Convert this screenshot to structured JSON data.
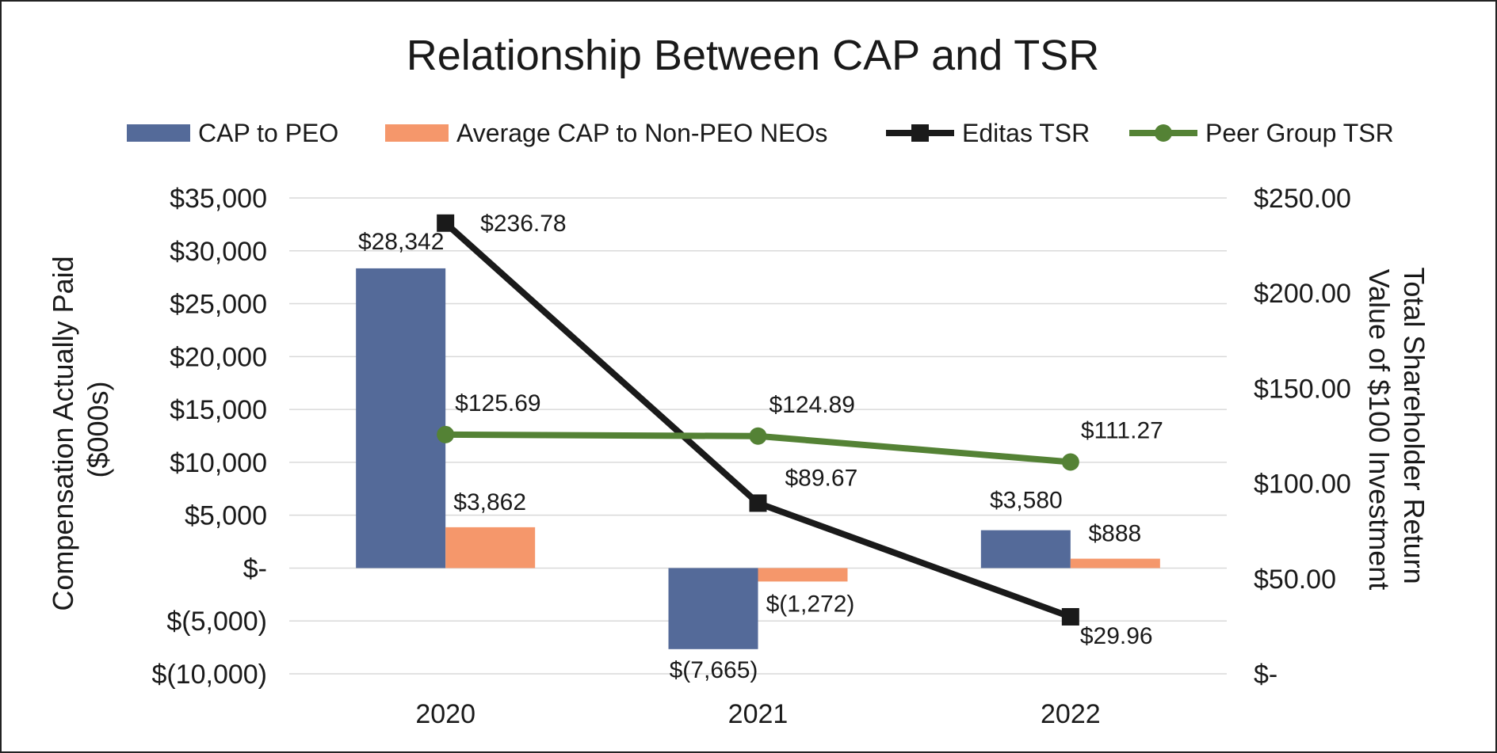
{
  "chart_data": {
    "type": "bar+line",
    "title": "Relationship Between CAP and TSR",
    "categories": [
      "2020",
      "2021",
      "2022"
    ],
    "left_axis": {
      "label": "Compensation Actually Paid ($000s)",
      "label_lines": [
        "Compensation Actually Paid",
        "($000s)"
      ],
      "ylim": [
        -10000,
        35000
      ],
      "ticks": [
        35000,
        30000,
        25000,
        20000,
        15000,
        10000,
        5000,
        0,
        -5000,
        -10000
      ],
      "tick_labels": [
        "$35,000",
        "$30,000",
        "$25,000",
        "$20,000",
        "$15,000",
        "$10,000",
        "$5,000",
        "$-",
        "$(5,000)",
        "$(10,000)"
      ]
    },
    "right_axis": {
      "label": "Total Shareholder Return Value of $100 Investment",
      "label_lines": [
        "Total Shareholder Return",
        "Value of $100 Investment"
      ],
      "ylim": [
        0,
        250
      ],
      "ticks": [
        250,
        200,
        150,
        100,
        50,
        0
      ],
      "tick_labels": [
        "$250.00",
        "$200.00",
        "$150.00",
        "$100.00",
        "$50.00",
        "$-"
      ]
    },
    "grid": true,
    "legend_position": "top",
    "series": [
      {
        "name": "CAP to PEO",
        "kind": "bar",
        "axis": "left",
        "color": "#546a99",
        "values": [
          28342,
          -7665,
          3580
        ],
        "labels": [
          "$28,342",
          "$(7,665)",
          "$3,580"
        ]
      },
      {
        "name": "Average CAP to Non-PEO NEOs",
        "kind": "bar",
        "axis": "left",
        "color": "#f5976b",
        "values": [
          3862,
          -1272,
          888
        ],
        "labels": [
          "$3,862",
          "$(1,272)",
          "$888"
        ]
      },
      {
        "name": "Editas TSR",
        "kind": "line",
        "axis": "right",
        "color": "#1a1a1a",
        "marker": "square",
        "values": [
          236.78,
          89.67,
          29.96
        ],
        "labels": [
          "$236.78",
          "$89.67",
          "$29.96"
        ]
      },
      {
        "name": "Peer Group TSR",
        "kind": "line",
        "axis": "right",
        "color": "#548235",
        "marker": "circle",
        "values": [
          125.69,
          124.89,
          111.27
        ],
        "labels": [
          "$125.69",
          "$124.89",
          "$111.27"
        ]
      }
    ]
  }
}
